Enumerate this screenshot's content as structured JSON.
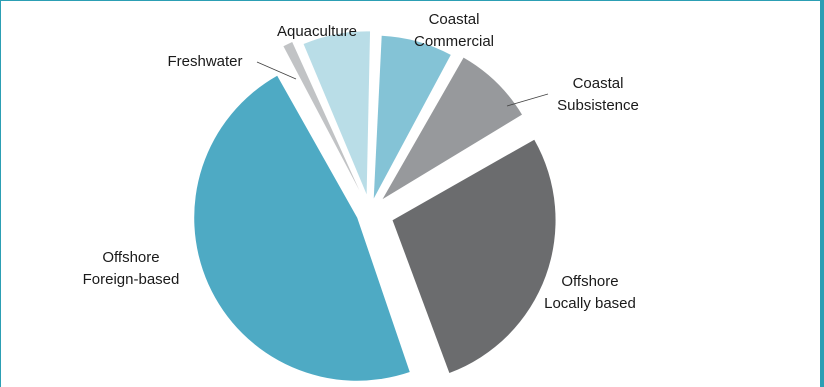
{
  "chart_data": {
    "type": "pie",
    "title": "",
    "legend": "none",
    "slices": [
      {
        "id": "coastal-commercial",
        "label_lines": [
          "Coastal",
          "Commercial"
        ],
        "value": 7.5,
        "color": "#84c3d6"
      },
      {
        "id": "coastal-subsistence",
        "label_lines": [
          "Coastal",
          "Subsistence"
        ],
        "value": 8.5,
        "color": "#97999c"
      },
      {
        "id": "offshore-locally-based",
        "label_lines": [
          "Offshore",
          "Locally based"
        ],
        "value": 28,
        "color": "#6b6c6e"
      },
      {
        "id": "offshore-foreign-based",
        "label_lines": [
          "Offshore",
          "Foreign-based"
        ],
        "value": 47.5,
        "color": "#4eaac4"
      },
      {
        "id": "freshwater",
        "label_lines": [
          "Freshwater"
        ],
        "value": 1.4,
        "color": "#c1c3c5"
      },
      {
        "id": "aquaculture",
        "label_lines": [
          "Aquaculture"
        ],
        "value": 7.1,
        "color": "#b9dde7"
      }
    ]
  }
}
